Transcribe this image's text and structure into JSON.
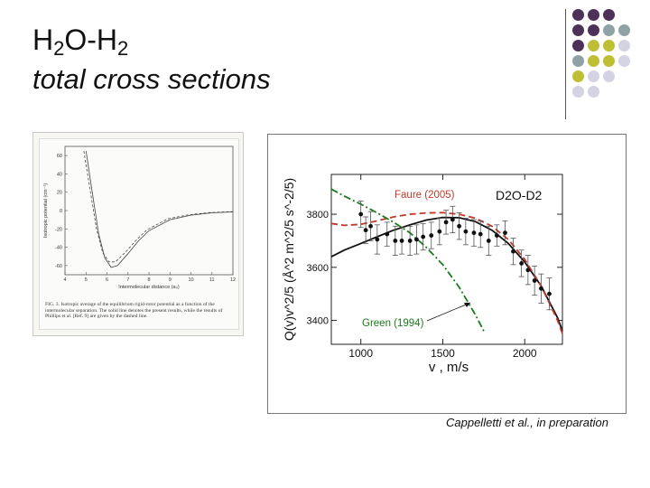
{
  "slide": {
    "title_base1": "H",
    "title_sub1": "2",
    "title_mid": "O-H",
    "title_sub2": "2",
    "subtitle": "total cross sections",
    "citation": "Cappelletti et al., in preparation"
  },
  "decor": {
    "dot_colors": {
      "purple": "#4e3159",
      "teal": "#8fa3a6",
      "olive": "#bfbf35",
      "lavender": "#d4d3e3"
    },
    "dot_grid": [
      [
        "purple",
        "purple",
        "purple",
        null
      ],
      [
        "purple",
        "purple",
        "teal",
        "teal"
      ],
      [
        "purple",
        "olive",
        "olive",
        "lavender"
      ],
      [
        "teal",
        "olive",
        "olive",
        "lavender"
      ],
      [
        "olive",
        "lavender",
        "lavender",
        null
      ],
      [
        "lavender",
        "lavender",
        null,
        null
      ]
    ]
  },
  "chart_data": [
    {
      "type": "line",
      "caption": "FIG. 3. Isotropic average of the equilibrium rigid-rotor potential as a function of the intermolecular separation. The solid line denotes the present results, while the results of Phillips et al. [Ref. 9] are given by the dashed line.",
      "xlabel": "Intermolecular distance (a₀)",
      "ylabel": "Isotropic potential (cm⁻¹)",
      "xlim": [
        4,
        12
      ],
      "ylim": [
        -70,
        70
      ],
      "xticks": [
        "4",
        "5",
        "6",
        "7",
        "8",
        "9",
        "10",
        "11",
        "12"
      ],
      "yticks": [
        "60",
        "40",
        "20",
        "0",
        "-20",
        "-40",
        "-60"
      ],
      "series": [
        {
          "x": [
            5.0,
            5.3,
            5.6,
            5.9,
            6.2,
            6.5,
            7.0,
            7.5,
            8.0,
            9.0,
            10.0,
            11.0,
            12.0
          ],
          "y": [
            65,
            20,
            -25,
            -52,
            -62,
            -60,
            -47,
            -33,
            -22,
            -10,
            -5,
            -2.5,
            -1.5
          ]
        },
        {
          "x": [
            4.9,
            5.2,
            5.5,
            5.8,
            6.1,
            6.4,
            6.9,
            7.4,
            7.9,
            8.9,
            9.9,
            10.9,
            12.0
          ],
          "y": [
            65,
            22,
            -20,
            -46,
            -56,
            -56,
            -45,
            -32,
            -21,
            -9,
            -4.5,
            -2.2,
            -1.2
          ]
        }
      ]
    },
    {
      "type": "line",
      "title": "D2O-D2",
      "xlabel": "v , m/s",
      "ylabel": "Q(v)v^2/5 (Å^2 m^2/5 s^-2/5)",
      "xlim": [
        820,
        2230
      ],
      "ylim": [
        3310,
        3950
      ],
      "xticks": [
        1000,
        1500,
        2000
      ],
      "yticks": [
        3400,
        3600,
        3800
      ],
      "annotations": [
        {
          "label": "Faure (2005)",
          "color": "#c0392b"
        },
        {
          "label": "Green (1994)",
          "color": "#1c7a1c"
        }
      ],
      "series": [
        {
          "color": "#111111",
          "style": "solid",
          "x": [
            820,
            900,
            1000,
            1100,
            1200,
            1300,
            1400,
            1500,
            1600,
            1700,
            1800,
            1900,
            2000,
            2100,
            2200,
            2230
          ],
          "y": [
            3640,
            3665,
            3690,
            3715,
            3740,
            3760,
            3778,
            3788,
            3787,
            3772,
            3740,
            3690,
            3620,
            3530,
            3410,
            3360
          ]
        },
        {
          "color": "#c0392b",
          "style": "dashed",
          "x": [
            820,
            900,
            1000,
            1100,
            1200,
            1300,
            1400,
            1500,
            1600,
            1700,
            1800,
            1900,
            2000,
            2100,
            2200,
            2230
          ],
          "y": [
            3765,
            3758,
            3762,
            3775,
            3790,
            3800,
            3805,
            3806,
            3800,
            3785,
            3755,
            3705,
            3630,
            3530,
            3400,
            3350
          ]
        },
        {
          "color": "#1c7a1c",
          "style": "dashdot",
          "x": [
            820,
            900,
            1000,
            1100,
            1200,
            1300,
            1400,
            1500,
            1600,
            1700,
            1750
          ],
          "y": [
            3895,
            3868,
            3838,
            3805,
            3770,
            3730,
            3675,
            3610,
            3525,
            3420,
            3360
          ]
        },
        {
          "name": "data",
          "style": "points",
          "x": [
            1000,
            1030,
            1060,
            1100,
            1160,
            1210,
            1250,
            1300,
            1340,
            1380,
            1430,
            1480,
            1520,
            1560,
            1600,
            1640,
            1690,
            1730,
            1780,
            1830,
            1880,
            1930,
            1980,
            2020,
            2060,
            2100,
            2150
          ],
          "y": [
            3800,
            3740,
            3755,
            3705,
            3725,
            3700,
            3700,
            3700,
            3705,
            3715,
            3720,
            3735,
            3770,
            3780,
            3755,
            3735,
            3730,
            3725,
            3700,
            3720,
            3730,
            3660,
            3615,
            3590,
            3550,
            3520,
            3500
          ],
          "err": [
            50,
            50,
            55,
            55,
            45,
            55,
            50,
            55,
            55,
            50,
            50,
            50,
            45,
            50,
            50,
            50,
            50,
            50,
            55,
            40,
            45,
            50,
            50,
            55,
            55,
            55,
            60
          ]
        }
      ]
    }
  ]
}
